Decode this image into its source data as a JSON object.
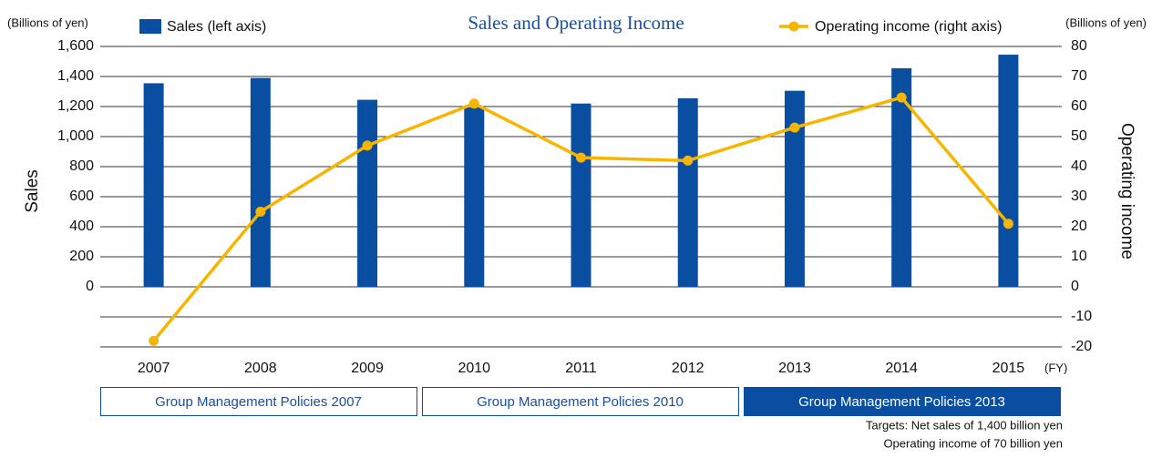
{
  "chart_data": {
    "type": "bar",
    "title": "Sales and Operating Income",
    "y_unit": "(Billions of yen)",
    "y2_unit": "(Billions of yen)",
    "ylabel": "Sales",
    "y2label": "Operating income",
    "x_unit": "(FY)",
    "categories": [
      "2007",
      "2008",
      "2009",
      "2010",
      "2011",
      "2012",
      "2013",
      "2014",
      "2015"
    ],
    "series": [
      {
        "name": "Sales (left axis)",
        "type": "bar",
        "color": "#0a4ea2",
        "axis": "y",
        "values": [
          1355,
          1390,
          1245,
          1195,
          1220,
          1255,
          1305,
          1455,
          1545
        ]
      },
      {
        "name": "Operating income (right axis)",
        "type": "line",
        "color": "#f7b500",
        "axis": "y2",
        "values": [
          -18,
          25,
          47,
          61,
          43,
          42,
          53,
          63,
          21
        ]
      }
    ],
    "ylim": [
      -400,
      1600
    ],
    "yticks": [
      0,
      200,
      400,
      600,
      800,
      {
        "value": 1000,
        "label": "1,000"
      },
      {
        "value": 1200,
        "label": "1,200"
      },
      {
        "value": 1400,
        "label": "1,400"
      },
      {
        "value": 1600,
        "label": "1,600"
      }
    ],
    "y2lim": [
      -20,
      80
    ],
    "y2ticks": [
      -20,
      -10,
      0,
      10,
      20,
      30,
      40,
      50,
      60,
      70,
      80
    ],
    "grid": true,
    "policies": [
      "Group Management Policies 2007",
      "Group Management Policies 2010",
      "Group Management Policies 2013"
    ],
    "targets": [
      "Targets: Net sales of 1,400 billion yen",
      "Operating income of 70 billion yen"
    ]
  }
}
